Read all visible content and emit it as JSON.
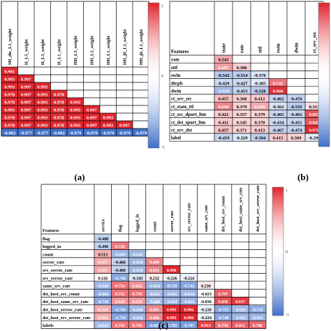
{
  "palette": {
    "positive": "#e0242c",
    "negative": "#3e6fc8",
    "neutral": "#ffffff",
    "grid": "#000000"
  },
  "chart_data": [
    {
      "type": "heatmap",
      "panel": "(a)",
      "title": "",
      "column_headers": [
        "MI_dir_L1_weight",
        "H_L5_weight",
        "H_L3_weight",
        "H_L1_weight",
        "HH_L5_weight",
        "HH_L3_weight",
        "HH_L1_weight",
        "HH_jit_L3_weight",
        "HH_jit_L1_weight"
      ],
      "rows": [
        {
          "label": "",
          "values": [
            0.981
          ]
        },
        {
          "label": "",
          "values": [
            0.993,
            0.997
          ]
        },
        {
          "label": "",
          "values": [
            0.993,
            0.997,
            0.993
          ]
        },
        {
          "label": "",
          "values": [
            0.978,
            0.997,
            0.993,
            0.978
          ]
        },
        {
          "label": "",
          "values": [
            0.978,
            0.997,
            0.993,
            0.978,
            0.993
          ]
        },
        {
          "label": "",
          "values": [
            0.993,
            0.997,
            0.993,
            0.978,
            0.993,
            0.997
          ]
        },
        {
          "label": "",
          "values": [
            0.978,
            0.997,
            0.993,
            0.978,
            0.993,
            0.997,
            0.993
          ]
        },
        {
          "label": "",
          "values": [
            0.978,
            0.997,
            0.993,
            0.978,
            0.993,
            0.997,
            0.993,
            0.997
          ]
        },
        {
          "label": "",
          "values": [
            -0.982,
            -0.977,
            -0.977,
            -0.982,
            -0.979,
            -0.979,
            -0.979,
            -0.979,
            -0.979
          ]
        }
      ],
      "colorbar": {
        "min": -1,
        "max": 1,
        "ticks": [
          "1",
          "0",
          "-1"
        ]
      }
    },
    {
      "type": "heatmap",
      "panel": "(b)",
      "title": "",
      "corner_label": "Features",
      "column_headers": [
        "state",
        "rate",
        "sttl",
        "swin",
        "dwin",
        "ct_srv_src"
      ],
      "rows": [
        {
          "label": "rate",
          "values": [
            0.543
          ]
        },
        {
          "label": "sttl",
          "values": [
            0.607,
            0.388
          ]
        },
        {
          "label": "swin",
          "values": [
            -0.542,
            -0.514,
            -0.37
          ]
        },
        {
          "label": "dtcpb",
          "values": [
            -0.429,
            -0.427,
            -0.305,
            0.741
          ]
        },
        {
          "label": "dwin",
          "values": [
            -0.639,
            -0.453,
            -0.528,
            0.96
          ]
        },
        {
          "label": "ct_srv_src",
          "values": [
            0.457,
            0.368,
            0.412,
            -0.462,
            -0.476
          ]
        },
        {
          "label": "ct_state_ttl",
          "values": [
            0.698,
            0.379,
            0.556,
            -0.362,
            -0.535,
            0.313
          ]
        },
        {
          "label": "ct_src_dport_ltm",
          "values": [
            0.421,
            0.357,
            0.379,
            -0.465,
            -0.462,
            0.855
          ]
        },
        {
          "label": "ct_dst_sport_ltm",
          "values": [
            0.411,
            0.345,
            0.37,
            -0.434,
            -0.451,
            0.843
          ]
        },
        {
          "label": "ct_srv_dst",
          "values": [
            0.457,
            0.371,
            0.413,
            -0.467,
            -0.474,
            0.978
          ]
        },
        {
          "label": "label",
          "values": [
            -0.459,
            -0.329,
            -0.504,
            0.415,
            0.369,
            -0.29
          ]
        }
      ],
      "colorbar": {
        "min": -1,
        "max": 1,
        "ticks": []
      }
    },
    {
      "type": "heatmap",
      "panel": "(c)",
      "title": "",
      "corner_label": "Features",
      "column_headers": [
        "service",
        "flag",
        "logged_in",
        "count",
        "serror_rate",
        "srv_serror_rate",
        "same_srv_rate",
        "dst_host_srv_count",
        "dst_host_same_srv_rate",
        "dst_host_srv_serror_rate"
      ],
      "rows": [
        {
          "label": "flag",
          "values": [
            -0.488
          ]
        },
        {
          "label": "logged_in",
          "values": [
            -0.496,
            0.726
          ]
        },
        {
          "label": "count",
          "values": [
            0.513,
            -0.649,
            -0.649
          ]
        },
        {
          "label": "serror_rate",
          "values": [
            0.557,
            -0.468,
            -0.65,
            0.689
          ]
        },
        {
          "label": "srv_serror_rate",
          "values": [
            0.557,
            -0.468,
            -0.65,
            0.691,
            0.996
          ]
        },
        {
          "label": "srv_rerror_rate",
          "values": [
            0.126,
            -0.748,
            -0.343,
            0.232,
            -0.226,
            -0.224
          ]
        },
        {
          "label": "same_srv_rate",
          "values": [
            -0.64,
            0.754,
            0.642,
            -0.654,
            -0.739,
            -0.741,
            0.23
          ]
        },
        {
          "label": "dst_host_srv_count",
          "values": [
            -0.684,
            0.751,
            0.75,
            -0.612,
            -0.662,
            -0.654,
            -0.023,
            0.797
          ]
        },
        {
          "label": "dst_host_same_srv_rate",
          "values": [
            -0.718,
            0.628,
            0.62,
            -0.608,
            -0.664,
            -0.664,
            -0.036,
            0.858,
            0.937
          ]
        },
        {
          "label": "dst_host_serror_rate",
          "values": [
            0.554,
            -0.749,
            -0.648,
            0.683,
            0.995,
            0.996,
            -0.22,
            -0.735,
            -0.65,
            -0.715
          ]
        },
        {
          "label": "dst_host_srv_serror_rate",
          "values": [
            0.554,
            -0.758,
            -0.656,
            0.688,
            0.995,
            0.996,
            -0.224,
            -0.74,
            -0.663,
            -0.663
          ]
        },
        {
          "label": "labels",
          "values": [
            -0.614,
            0.743,
            0.743,
            -0.805,
            -0.789,
            -0.787,
            0.913,
            0.75,
            0.811,
            0.788
          ]
        }
      ],
      "colorbar": {
        "min": -1,
        "max": 1,
        "ticks": [
          "1",
          "0",
          "-1"
        ]
      }
    }
  ]
}
